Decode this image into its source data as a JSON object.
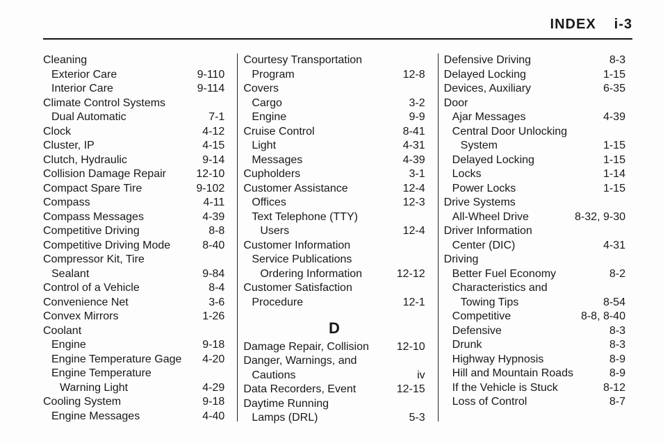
{
  "header": {
    "left_label": "INDEX",
    "right_label": "i-3"
  },
  "columns": [
    {
      "entries": [
        {
          "label": "Cleaning",
          "noleader": true
        },
        {
          "label": "Exterior Care",
          "page": "9-110",
          "indent": 1
        },
        {
          "label": "Interior Care",
          "page": "9-114",
          "indent": 1
        },
        {
          "label": "Climate Control Systems",
          "noleader": true
        },
        {
          "label": "Dual Automatic",
          "page": "7-1",
          "indent": 1
        },
        {
          "label": "Clock",
          "page": "4-12"
        },
        {
          "label": "Cluster, IP",
          "page": "4-15"
        },
        {
          "label": "Clutch, Hydraulic",
          "page": "9-14"
        },
        {
          "label": "Collision Damage Repair",
          "page": "12-10"
        },
        {
          "label": "Compact Spare Tire",
          "page": "9-102"
        },
        {
          "label": "Compass",
          "page": "4-11"
        },
        {
          "label": "Compass Messages",
          "page": "4-39"
        },
        {
          "label": "Competitive Driving",
          "page": "8-8"
        },
        {
          "label": "Competitive Driving Mode",
          "page": "8-40"
        },
        {
          "label": "Compressor Kit, Tire",
          "noleader": true
        },
        {
          "label": "Sealant",
          "page": "9-84",
          "indent": 1
        },
        {
          "label": "Control of a Vehicle",
          "page": "8-4"
        },
        {
          "label": "Convenience Net",
          "page": "3-6"
        },
        {
          "label": "Convex Mirrors",
          "page": "1-26"
        },
        {
          "label": "Coolant",
          "noleader": true
        },
        {
          "label": "Engine",
          "page": "9-18",
          "indent": 1
        },
        {
          "label": "Engine Temperature Gage",
          "page": "4-20",
          "indent": 1
        },
        {
          "label": "Engine Temperature",
          "noleader": true,
          "indent": 1
        },
        {
          "label": "Warning Light",
          "page": "4-29",
          "indent": 2
        },
        {
          "label": "Cooling System",
          "page": "9-18"
        },
        {
          "label": "Engine Messages",
          "page": "4-40",
          "indent": 1
        }
      ]
    },
    {
      "entries": [
        {
          "label": "Courtesy Transportation",
          "noleader": true
        },
        {
          "label": "Program",
          "page": "12-8",
          "indent": 1
        },
        {
          "label": "Covers",
          "noleader": true
        },
        {
          "label": "Cargo",
          "page": "3-2",
          "indent": 1
        },
        {
          "label": "Engine",
          "page": "9-9",
          "indent": 1
        },
        {
          "label": "Cruise Control",
          "page": "8-41"
        },
        {
          "label": "Light",
          "page": "4-31",
          "indent": 1
        },
        {
          "label": "Messages",
          "page": "4-39",
          "indent": 1
        },
        {
          "label": "Cupholders",
          "page": "3-1"
        },
        {
          "label": "Customer Assistance",
          "page": "12-4"
        },
        {
          "label": "Offices",
          "page": "12-3",
          "indent": 1
        },
        {
          "label": "Text Telephone (TTY)",
          "noleader": true,
          "indent": 1
        },
        {
          "label": "Users",
          "page": "12-4",
          "indent": 2
        },
        {
          "label": "Customer Information",
          "noleader": true
        },
        {
          "label": "Service Publications",
          "noleader": true,
          "indent": 1
        },
        {
          "label": "Ordering Information",
          "page": "12-12",
          "indent": 2
        },
        {
          "label": "Customer Satisfaction",
          "noleader": true
        },
        {
          "label": "Procedure",
          "page": "12-1",
          "indent": 1
        },
        {
          "section": "D"
        },
        {
          "label": "Damage Repair, Collision",
          "page": "12-10"
        },
        {
          "label": "Danger, Warnings, and",
          "noleader": true
        },
        {
          "label": "Cautions",
          "page": "iv",
          "indent": 1
        },
        {
          "label": "Data Recorders, Event",
          "page": "12-15"
        },
        {
          "label": "Daytime Running",
          "noleader": true
        },
        {
          "label": "Lamps (DRL)",
          "page": "5-3",
          "indent": 1
        }
      ]
    },
    {
      "entries": [
        {
          "label": "Defensive Driving",
          "page": "8-3"
        },
        {
          "label": "Delayed Locking",
          "page": "1-15"
        },
        {
          "label": "Devices, Auxiliary",
          "page": "6-35"
        },
        {
          "label": "Door",
          "noleader": true
        },
        {
          "label": "Ajar Messages",
          "page": "4-39",
          "indent": 1
        },
        {
          "label": "Central Door Unlocking",
          "noleader": true,
          "indent": 1
        },
        {
          "label": "System",
          "page": "1-15",
          "indent": 2
        },
        {
          "label": "Delayed Locking",
          "page": "1-15",
          "indent": 1
        },
        {
          "label": "Locks",
          "page": "1-14",
          "indent": 1
        },
        {
          "label": "Power Locks",
          "page": "1-15",
          "indent": 1
        },
        {
          "label": "Drive Systems",
          "noleader": true
        },
        {
          "label": "All-Wheel Drive",
          "page": "8-32, 9-30",
          "indent": 1
        },
        {
          "label": "Driver Information",
          "noleader": true
        },
        {
          "label": "Center (DIC)",
          "page": "4-31",
          "indent": 1
        },
        {
          "label": "Driving",
          "noleader": true
        },
        {
          "label": "Better Fuel Economy",
          "page": "8-2",
          "indent": 1
        },
        {
          "label": "Characteristics and",
          "noleader": true,
          "indent": 1
        },
        {
          "label": "Towing Tips",
          "page": "8-54",
          "indent": 2
        },
        {
          "label": "Competitive",
          "page": "8-8, 8-40",
          "indent": 1
        },
        {
          "label": "Defensive",
          "page": "8-3",
          "indent": 1
        },
        {
          "label": "Drunk",
          "page": "8-3",
          "indent": 1
        },
        {
          "label": "Highway Hypnosis",
          "page": "8-9",
          "indent": 1
        },
        {
          "label": "Hill and Mountain Roads",
          "page": "8-9",
          "indent": 1
        },
        {
          "label": "If the Vehicle is Stuck",
          "page": "8-12",
          "indent": 1
        },
        {
          "label": "Loss of Control",
          "page": "8-7",
          "indent": 1
        }
      ]
    }
  ]
}
